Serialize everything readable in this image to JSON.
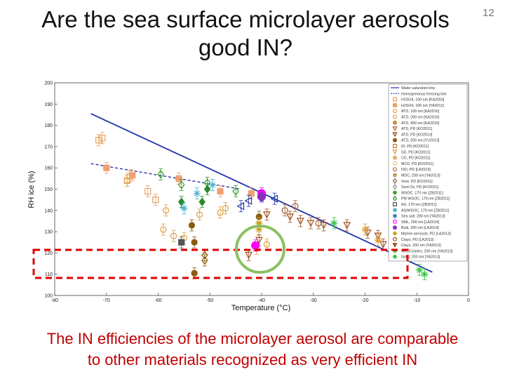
{
  "slide": {
    "title_line1": "Are the sea surface microlayer aerosols",
    "title_line2": "good IN?",
    "number": "12",
    "caption_line1": "The IN efficiencies of the microlayer aerosol are comparable",
    "caption_line2": "to other materials recognized as very efficient IN"
  },
  "chart_data": {
    "type": "scatter",
    "xlabel": "Temperature (°C)",
    "ylabel": "RH ice (%)",
    "xlim": [
      -80,
      0
    ],
    "ylim": [
      100,
      200
    ],
    "xticks": [
      "-80",
      "-70",
      "-60",
      "-50",
      "-40",
      "-30",
      "-20",
      "-10",
      "0"
    ],
    "yticks": [
      "100",
      "110",
      "120",
      "130",
      "140",
      "150",
      "160",
      "170",
      "180",
      "190",
      "200"
    ],
    "legend_position": "right",
    "lines": [
      {
        "name": "Water saturation line",
        "style": "solid",
        "color": "#2233aa",
        "points": [
          [
            -73,
            185.5
          ],
          [
            -7,
            111
          ]
        ]
      },
      {
        "name": "Homogeneous freezing line",
        "style": "dashed",
        "color": "#2233aa",
        "points": [
          [
            -73,
            162
          ],
          [
            -44,
            150
          ]
        ]
      }
    ],
    "legend": [
      "Water saturation line",
      "Homogeneous freezing line",
      "H2SO4, 100 nm [KA2003]",
      "H2SO4, 100 nm [YA2012]",
      "ATD, 100 nm [KA2010]",
      "ATD, 200 nm [KA2010]",
      "ATD, 400 nm [KA2010]",
      "ATD, PD [KO2011]",
      "ATD, PD [KO2013]",
      "ATD, 200 nm [YU2013]",
      "ID, PD [KO2011]",
      "SD, PD [KO2011]",
      "CD, PD [KO2011]",
      "MCD, PD [KO2011]",
      "ISD, PD [LA2013]",
      "MDC, 200 nm [YA2013]",
      "Soot, PD [KO2011]",
      "Soot Ox, PD [KO2011]",
      "WSOC, 170 nm [ZB2011]",
      "PM WSOC, 170 nm [ZB2011]",
      "AS, 170 nm [ZB2011]",
      "AS/WSOC, 170 nm [ZB2011]",
      "Sea salt, 200 nm [YA2013]",
      "SML, 200 nm [LA2014]",
      "Bulk, 200 nm [LA2014]",
      "Marine aerosols, PD [LA2014]",
      "Clays, PD [LA2013]",
      "Clays, 200 nm [YA2013]",
      "Metal oxides, 200 nm [YA2013]",
      "NaCl, 200 nm [YA2013]"
    ],
    "series": [
      {
        "marker": "square",
        "color": "#e8a060",
        "filled": false,
        "points": [
          [
            -71.5,
            173
          ],
          [
            -70.8,
            174
          ],
          [
            -66,
            154
          ],
          [
            -65.5,
            156
          ],
          [
            -62,
            149
          ],
          [
            -60.5,
            145
          ]
        ]
      },
      {
        "marker": "square",
        "color": "#f0a070",
        "filled": true,
        "points": [
          [
            -70,
            160
          ],
          [
            -65,
            156.5
          ],
          [
            -56,
            155
          ],
          [
            -48,
            149
          ],
          [
            -42,
            148
          ]
        ]
      },
      {
        "marker": "circle",
        "color": "#e0a040",
        "filled": false,
        "points": [
          [
            -66,
            154
          ],
          [
            -58.5,
            140
          ],
          [
            -59,
            131
          ],
          [
            -57,
            128
          ],
          [
            -55,
            127
          ],
          [
            -52,
            138
          ],
          [
            -48,
            139
          ],
          [
            -47,
            141
          ],
          [
            -39,
            124
          ],
          [
            -41,
            122
          ]
        ]
      },
      {
        "marker": "diamond",
        "color": "#3a9a2a",
        "filled": false,
        "points": [
          [
            -59.5,
            157
          ],
          [
            -55.5,
            152
          ],
          [
            -50.5,
            153
          ],
          [
            -45,
            149
          ]
        ]
      },
      {
        "marker": "diamond",
        "color": "#2a8a2a",
        "filled": true,
        "points": [
          [
            -55.5,
            144
          ],
          [
            -51.5,
            144
          ],
          [
            -50.5,
            150
          ]
        ]
      },
      {
        "marker": "triangle-left",
        "color": "#2233aa",
        "filled": false,
        "points": [
          [
            -44,
            142
          ],
          [
            -42.5,
            144.5
          ],
          [
            -40,
            147
          ],
          [
            -37.5,
            145.5
          ]
        ]
      },
      {
        "marker": "star",
        "color": "#4ab0d0",
        "filled": false,
        "points": [
          [
            -55,
            141
          ],
          [
            -52.5,
            148
          ],
          [
            -49.5,
            152
          ]
        ]
      },
      {
        "marker": "circle",
        "color": "#8a5a10",
        "filled": true,
        "points": [
          [
            -53.5,
            133
          ],
          [
            -53,
            125
          ],
          [
            -53,
            110.5
          ],
          [
            -40.5,
            137
          ]
        ]
      },
      {
        "marker": "square",
        "color": "#555555",
        "filled": true,
        "points": [
          [
            -55.5,
            125
          ]
        ]
      },
      {
        "marker": "diamond",
        "color": "#8a5a10",
        "filled": false,
        "points": [
          [
            -51,
            119
          ],
          [
            -51,
            116.5
          ]
        ]
      },
      {
        "marker": "triangle-down",
        "color": "#a05020",
        "filled": false,
        "points": [
          [
            -40.5,
            126
          ],
          [
            -42.5,
            119
          ],
          [
            -39,
            138
          ],
          [
            -34.5,
            137
          ],
          [
            -32.5,
            135
          ],
          [
            -30.5,
            134
          ],
          [
            -28,
            133
          ],
          [
            -23.5,
            133
          ],
          [
            -19.5,
            129.5
          ],
          [
            -17.5,
            128
          ],
          [
            -16.5,
            124
          ]
        ]
      },
      {
        "marker": "circle",
        "color": "#a06030",
        "filled": false,
        "points": [
          [
            -35.5,
            140
          ],
          [
            -33.5,
            142
          ],
          [
            -29,
            134
          ]
        ]
      },
      {
        "marker": "circle",
        "color": "#ff00ff",
        "filled": true,
        "points": [
          [
            -40,
            148
          ],
          [
            -41.2,
            123.5
          ]
        ]
      },
      {
        "marker": "circle",
        "color": "#8a30c0",
        "filled": true,
        "points": [
          [
            -40,
            146.5
          ]
        ]
      },
      {
        "marker": "star",
        "color": "#c9a020",
        "filled": false,
        "points": [
          [
            -40.5,
            134
          ],
          [
            -40.5,
            131
          ]
        ]
      },
      {
        "marker": "star",
        "color": "#e09a30",
        "filled": true,
        "points": [
          [
            -20,
            131
          ],
          [
            -17.5,
            126
          ]
        ]
      },
      {
        "marker": "star",
        "color": "#30c040",
        "filled": true,
        "points": [
          [
            -26,
            134
          ],
          [
            -10,
            120
          ],
          [
            -9.5,
            112
          ],
          [
            -8.5,
            110
          ]
        ]
      }
    ]
  },
  "annotations": {
    "red_box_color": "#e00000",
    "green_circle_color": "#8cc060"
  }
}
